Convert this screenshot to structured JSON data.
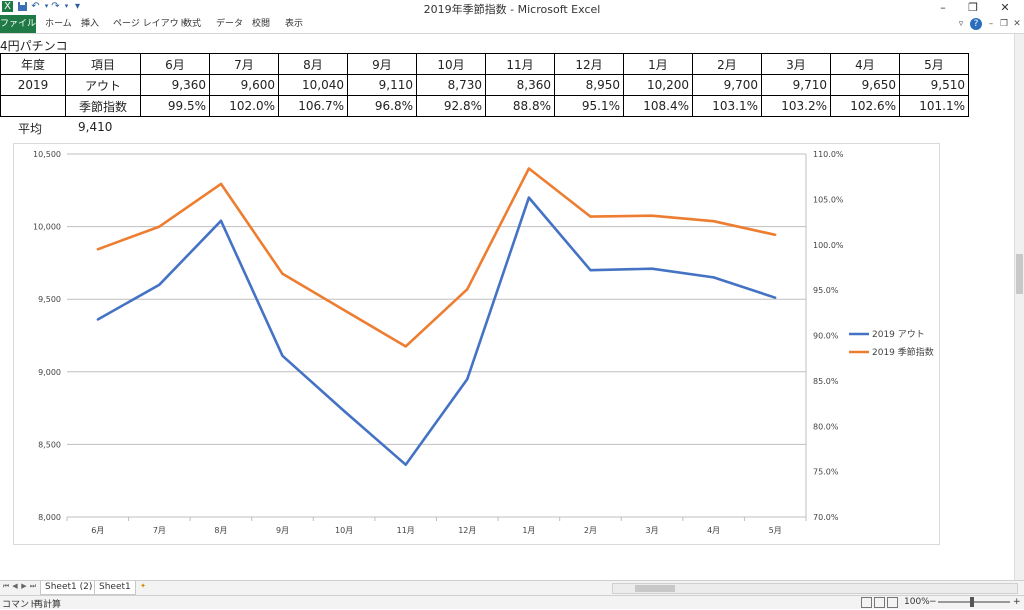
{
  "window": {
    "title": "2019年季節指数 - Microsoft Excel",
    "controls": {
      "minimize": "–",
      "restore": "❐",
      "close": "✕"
    }
  },
  "qat": {
    "excel_icon": "X",
    "save_icon": "save-icon",
    "undo": "↶",
    "redo": "↷",
    "customize": "▾"
  },
  "ribbon": {
    "tabs": [
      "ファイル",
      "ホーム",
      "挿入",
      "ページ レイアウト",
      "数式",
      "データ",
      "校閲",
      "表示"
    ],
    "right_icons": [
      "▿",
      "?",
      "–",
      "❐",
      "✕"
    ]
  },
  "sheet": {
    "title_cell": "4円パチンコ",
    "table": {
      "header": [
        "年度",
        "項目",
        "6月",
        "7月",
        "8月",
        "9月",
        "10月",
        "11月",
        "12月",
        "1月",
        "2月",
        "3月",
        "4月",
        "5月"
      ],
      "rows": [
        [
          "2019",
          "アウト",
          "9,360",
          "9,600",
          "10,040",
          "9,110",
          "8,730",
          "8,360",
          "8,950",
          "10,200",
          "9,700",
          "9,710",
          "9,650",
          "9,510"
        ],
        [
          "",
          "季節指数",
          "99.5%",
          "102.0%",
          "106.7%",
          "96.8%",
          "92.8%",
          "88.8%",
          "95.1%",
          "108.4%",
          "103.1%",
          "103.2%",
          "102.6%",
          "101.1%"
        ]
      ]
    },
    "average_label": "平均",
    "average_value": "9,410"
  },
  "chart_data": {
    "type": "line",
    "categories": [
      "6月",
      "7月",
      "8月",
      "9月",
      "10月",
      "11月",
      "12月",
      "1月",
      "2月",
      "3月",
      "4月",
      "5月"
    ],
    "series": [
      {
        "name": "2019 アウト",
        "axis": "left",
        "color": "#4472c4",
        "values": [
          9360,
          9600,
          10040,
          9110,
          8730,
          8360,
          8950,
          10200,
          9700,
          9710,
          9650,
          9510
        ]
      },
      {
        "name": "2019 季節指数",
        "axis": "right",
        "color": "#ed7d31",
        "values": [
          99.5,
          102.0,
          106.7,
          96.8,
          92.8,
          88.8,
          95.1,
          108.4,
          103.1,
          103.2,
          102.6,
          101.1
        ]
      }
    ],
    "y_left": {
      "min": 8000,
      "max": 10500,
      "step": 500,
      "tick_labels": [
        "8,000",
        "8,500",
        "9,000",
        "9,500",
        "10,000",
        "10,500"
      ]
    },
    "y_right": {
      "min": 70,
      "max": 110,
      "step": 5,
      "tick_labels": [
        "70.0%",
        "75.0%",
        "80.0%",
        "85.0%",
        "90.0%",
        "95.0%",
        "100.0%",
        "105.0%",
        "110.0%"
      ]
    },
    "grid": true,
    "legend_position": "right"
  },
  "sheet_tabs": [
    "Sheet1 (2)",
    "Sheet1"
  ],
  "status": {
    "mode": "コマンド",
    "extra": "再計算",
    "zoom": "100%"
  }
}
